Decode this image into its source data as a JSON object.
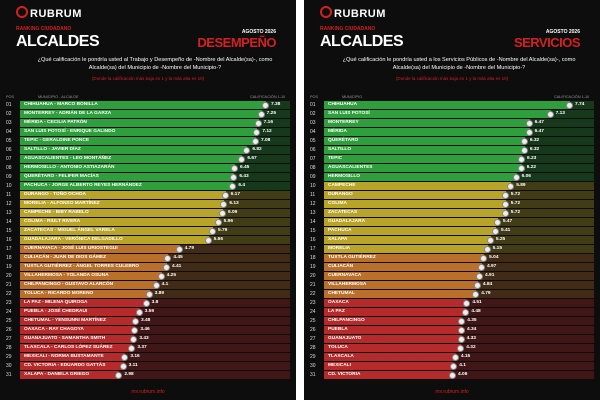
{
  "panels": [
    {
      "logo": "RUBRUM",
      "kicker": "RANKING CIUDADANO",
      "title": "ALCALDES",
      "date": "AGOSTO 2026",
      "subtitle": "DESEMPEÑO",
      "question": "¿Qué calificación le pondría usted al Trabajo y Desempeño de -Nombre del Alcalde(sa)-, como Alcalde(sa) del Municipio de -Nombre del Municipio-?",
      "note": "(Donde la calificación más baja es 1 y la más alta es 10)",
      "columns": [
        "POS",
        "MUNICIPIO - ALCALDE",
        "CALIFICACIÓN 1-10"
      ],
      "footer": "mx.rubrum.info",
      "rows": [
        {
          "pos": "01",
          "label": "CHIHUAHUA - MARCO BONILLA",
          "value": 7.38,
          "color": "#2f9e3c"
        },
        {
          "pos": "02",
          "label": "MONTERREY - ADRIÁN DE LA GARZA",
          "value": 7.25,
          "color": "#2f9e3c"
        },
        {
          "pos": "03",
          "label": "MÉRIDA - CECILIA PATRÓN",
          "value": 7.16,
          "color": "#2f9e3c"
        },
        {
          "pos": "04",
          "label": "SAN LUIS POTOSÍ - ENRIQUE GALINDO",
          "value": 7.12,
          "color": "#2f9e3c"
        },
        {
          "pos": "05",
          "label": "TEPIC - GERALDINE PONCE",
          "value": 7.08,
          "color": "#2f9e3c"
        },
        {
          "pos": "06",
          "label": "SALTILLO - JAVIER DÍAZ",
          "value": 6.82,
          "color": "#2f9e3c"
        },
        {
          "pos": "07",
          "label": "AGUASCALIENTES - LEO MONTÁÑEZ",
          "value": 6.67,
          "color": "#2f9e3c"
        },
        {
          "pos": "08",
          "label": "HERMOSILLO - ANTONIO ASTIAZARÁN",
          "value": 6.45,
          "color": "#2f9e3c"
        },
        {
          "pos": "09",
          "label": "QUERÉTARO - FELIFER MACÍAS",
          "value": 6.43,
          "color": "#2f9e3c"
        },
        {
          "pos": "10",
          "label": "PACHUCA - JORGE ALBERTO REYES HERNÁNDEZ",
          "value": 6.4,
          "color": "#2f9e3c"
        },
        {
          "pos": "11",
          "label": "DURANGO - TOÑO OCHOA",
          "value": 6.17,
          "color": "#b9a42a"
        },
        {
          "pos": "12",
          "label": "MORELIA - ALFONSO MARTÍNEZ",
          "value": 6.13,
          "color": "#b9a42a"
        },
        {
          "pos": "13",
          "label": "CAMPECHE - BIBY RABELO",
          "value": 6.09,
          "color": "#b9a42a"
        },
        {
          "pos": "14",
          "label": "COLIMA - RIULT RIVERA",
          "value": 5.96,
          "color": "#b9a42a"
        },
        {
          "pos": "15",
          "label": "ZACATECAS - MIGUEL ÁNGEL VARELA",
          "value": 5.79,
          "color": "#b9a42a"
        },
        {
          "pos": "16",
          "label": "GUADALAJARA - VERÓNICA DELGADILLO",
          "value": 5.66,
          "color": "#b9a42a"
        },
        {
          "pos": "17",
          "label": "CUERNAVACA - JOSÉ LUIS URIOSTEGUI",
          "value": 4.79,
          "color": "#b8702a"
        },
        {
          "pos": "18",
          "label": "CULIACÁN - JUAN DE DIOS GÁMEZ",
          "value": 4.45,
          "color": "#b8702a"
        },
        {
          "pos": "19",
          "label": "TUXTLA GUTIÉRREZ - ÁNGEL TORRES CULEBRO",
          "value": 4.41,
          "color": "#b8702a"
        },
        {
          "pos": "20",
          "label": "VILLAHERMOSA - YOLANDA OSUNA",
          "value": 4.25,
          "color": "#b8702a"
        },
        {
          "pos": "21",
          "label": "CHILPANCINGO - GUSTAVO ALARCÓN",
          "value": 4.1,
          "color": "#b8702a"
        },
        {
          "pos": "22",
          "label": "TOLUCA - RICARDO MORENO",
          "value": 3.89,
          "color": "#b8702a"
        },
        {
          "pos": "23",
          "label": "LA PAZ - MILENA QUIROGA",
          "value": 3.8,
          "color": "#b52a2a"
        },
        {
          "pos": "24",
          "label": "PUEBLA - JOSÉ CHEDRAUI",
          "value": 3.59,
          "color": "#b52a2a"
        },
        {
          "pos": "25",
          "label": "CHETUMAL - YENSUNNI MARTÍNEZ",
          "value": 3.48,
          "color": "#b52a2a"
        },
        {
          "pos": "26",
          "label": "OAXACA - RAY CHAGOYA",
          "value": 3.46,
          "color": "#b52a2a"
        },
        {
          "pos": "27",
          "label": "GUANAJUATO - SAMANTHA SMITH",
          "value": 3.43,
          "color": "#b52a2a"
        },
        {
          "pos": "28",
          "label": "TLAXCALA - CARLOS LÓPEZ SUÁREZ",
          "value": 3.37,
          "color": "#b52a2a"
        },
        {
          "pos": "29",
          "label": "MEXICALI - NORMA BUSTAMANTE",
          "value": 3.16,
          "color": "#b52a2a"
        },
        {
          "pos": "30",
          "label": "CD. VICTORIA - EDUARDO GATTÁS",
          "value": 3.11,
          "color": "#b52a2a"
        },
        {
          "pos": "31",
          "label": "XALAPA - DANIELA GRIEGO",
          "value": 2.98,
          "color": "#b52a2a"
        }
      ]
    },
    {
      "logo": "RUBRUM",
      "kicker": "RANKING CIUDADANO",
      "title": "ALCALDES",
      "date": "AGOSTO 2026",
      "subtitle": "SERVICIOS",
      "question": "¿Qué calificación le pondría usted a los Servicios Públicos de -Nombre del Alcalde(sa)-, como Alcalde(sa) del Municipio de -Nombre del Municipio-?",
      "note": "(Donde la calificación más baja es 1 y la más alta es 10)",
      "columns": [
        "POS",
        "MUNICIPIO",
        "CALIFICACIÓN 1-10"
      ],
      "footer": "mx.rubrum.info",
      "rows": [
        {
          "pos": "01",
          "label": "CHIHUAHUA",
          "value": 7.74,
          "color": "#2f9e3c"
        },
        {
          "pos": "02",
          "label": "SAN LUIS POTOSÍ",
          "value": 7.13,
          "color": "#2f9e3c"
        },
        {
          "pos": "03",
          "label": "MONTERREY",
          "value": 6.47,
          "color": "#2f9e3c"
        },
        {
          "pos": "04",
          "label": "MÉRIDA",
          "value": 6.47,
          "color": "#2f9e3c"
        },
        {
          "pos": "05",
          "label": "QUERÉTARO",
          "value": 6.32,
          "color": "#2f9e3c"
        },
        {
          "pos": "06",
          "label": "SALTILLO",
          "value": 6.32,
          "color": "#2f9e3c"
        },
        {
          "pos": "07",
          "label": "TEPIC",
          "value": 6.23,
          "color": "#2f9e3c"
        },
        {
          "pos": "08",
          "label": "AGUASCALIENTES",
          "value": 6.22,
          "color": "#2f9e3c"
        },
        {
          "pos": "09",
          "label": "HERMOSILLO",
          "value": 6.06,
          "color": "#2f9e3c"
        },
        {
          "pos": "10",
          "label": "CAMPECHE",
          "value": 5.89,
          "color": "#b9a42a"
        },
        {
          "pos": "11",
          "label": "DURANGO",
          "value": 5.72,
          "color": "#b9a42a"
        },
        {
          "pos": "12",
          "label": "COLIMA",
          "value": 5.72,
          "color": "#b9a42a"
        },
        {
          "pos": "13",
          "label": "ZACATECAS",
          "value": 5.72,
          "color": "#b9a42a"
        },
        {
          "pos": "14",
          "label": "GUADALAJARA",
          "value": 5.47,
          "color": "#b9a42a"
        },
        {
          "pos": "15",
          "label": "PACHUCA",
          "value": 5.41,
          "color": "#b9a42a"
        },
        {
          "pos": "16",
          "label": "XALAPA",
          "value": 5.25,
          "color": "#b9a42a"
        },
        {
          "pos": "17",
          "label": "MORELIA",
          "value": 5.15,
          "color": "#b9a42a"
        },
        {
          "pos": "18",
          "label": "TUXTLA GUTIÉRREZ",
          "value": 5.04,
          "color": "#b8702a"
        },
        {
          "pos": "19",
          "label": "CULIACÁN",
          "value": 4.97,
          "color": "#b8702a"
        },
        {
          "pos": "20",
          "label": "CUERNAVACA",
          "value": 4.91,
          "color": "#b8702a"
        },
        {
          "pos": "21",
          "label": "VILLAHERMOSA",
          "value": 4.84,
          "color": "#b8702a"
        },
        {
          "pos": "22",
          "label": "CHETUMAL",
          "value": 4.79,
          "color": "#b8702a"
        },
        {
          "pos": "23",
          "label": "OAXACA",
          "value": 4.51,
          "color": "#b52a2a"
        },
        {
          "pos": "24",
          "label": "LA PAZ",
          "value": 4.48,
          "color": "#b52a2a"
        },
        {
          "pos": "25",
          "label": "CHILPANCINGO",
          "value": 4.35,
          "color": "#b52a2a"
        },
        {
          "pos": "26",
          "label": "PUEBLA",
          "value": 4.34,
          "color": "#b52a2a"
        },
        {
          "pos": "27",
          "label": "GUANAJUATO",
          "value": 4.33,
          "color": "#b52a2a"
        },
        {
          "pos": "28",
          "label": "TOLUCA",
          "value": 4.32,
          "color": "#b52a2a"
        },
        {
          "pos": "29",
          "label": "TLAXCALA",
          "value": 4.15,
          "color": "#b52a2a"
        },
        {
          "pos": "30",
          "label": "MEXICALI",
          "value": 4.1,
          "color": "#b52a2a"
        },
        {
          "pos": "31",
          "label": "CD. VICTORIA",
          "value": 4.06,
          "color": "#b52a2a"
        }
      ]
    }
  ]
}
